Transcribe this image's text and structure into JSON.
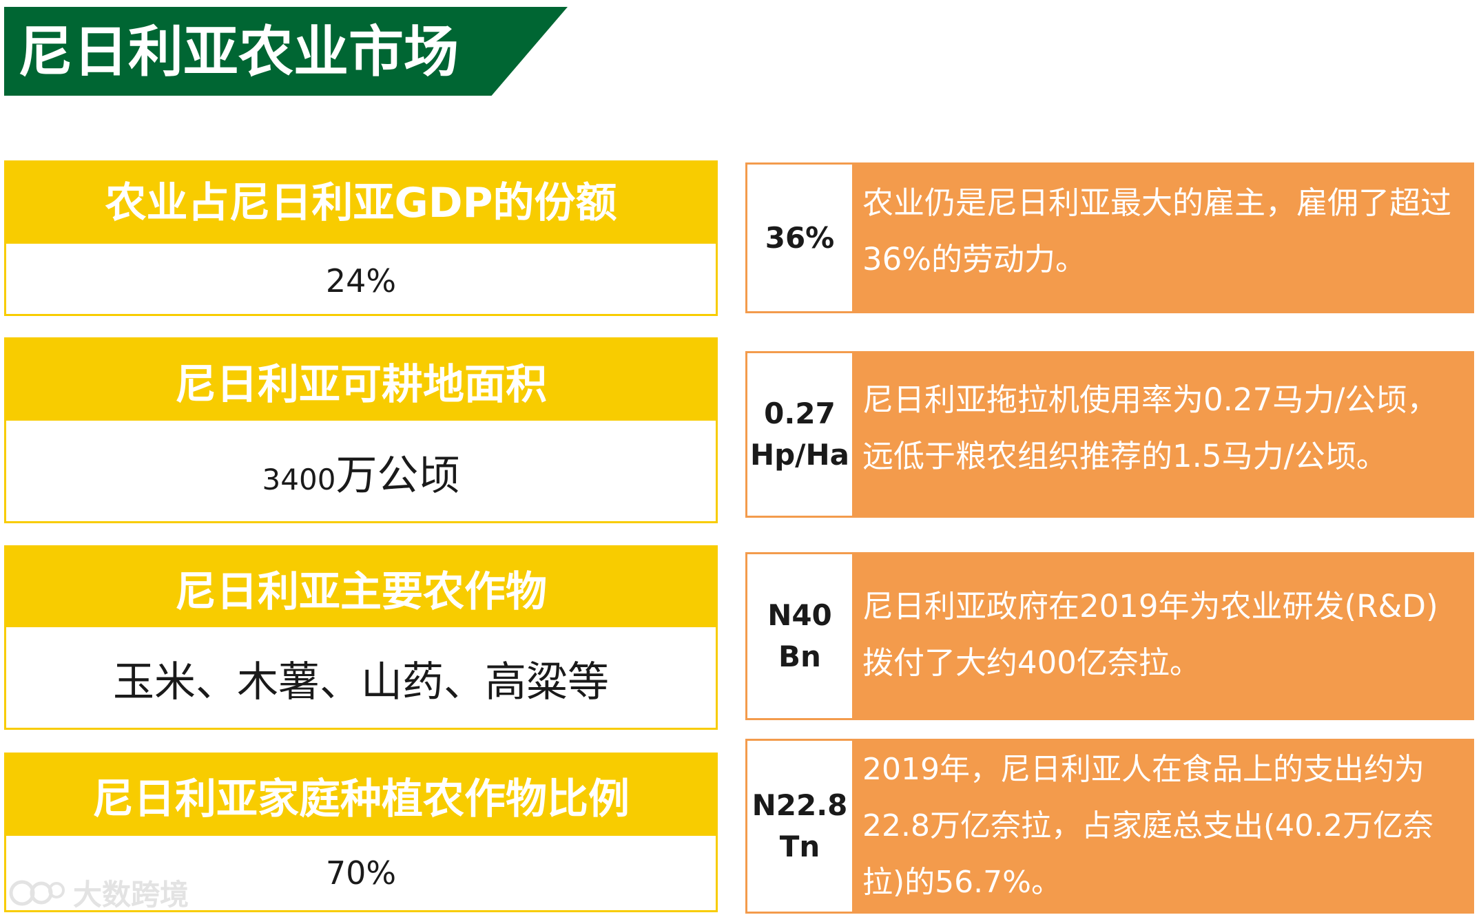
{
  "header": {
    "title": "尼日利亚农业市场"
  },
  "stats": [
    {
      "label": "农业占尼日利亚GDP的份额",
      "value": "24%"
    },
    {
      "label": "尼日利亚可耕地面积",
      "value_number": "3400",
      "value_unit": "万公顷"
    },
    {
      "label": "尼日利亚主要农作物",
      "value": "玉米、木薯、山药、高粱等"
    },
    {
      "label": "尼日利亚家庭种植农作物比例",
      "value": "70%"
    }
  ],
  "facts": [
    {
      "key_line1": "36%",
      "key_line2": "",
      "text": "农业仍是尼日利亚最大的雇主，雇佣了超过36%的劳动力。"
    },
    {
      "key_line1": "0.27",
      "key_line2": "Hp/Ha",
      "text": "尼日利亚拖拉机使用率为0.27马力/公顷，远低于粮农组织推荐的1.5马力/公顷。"
    },
    {
      "key_line1": "N40",
      "key_line2": "Bn",
      "text": "尼日利亚政府在2019年为农业研发(R&D)拨付了大约400亿奈拉。"
    },
    {
      "key_line1": "N22.8",
      "key_line2": "Tn",
      "text": "2019年，尼日利亚人在食品上的支出约为22.8万亿奈拉，占家庭总支出(40.2万亿奈拉)的56.7%。"
    }
  ],
  "watermark": {
    "text": "大数跨境"
  },
  "colors": {
    "banner": "#006633",
    "yellow": "#f8cc00",
    "orange": "#f39b4c",
    "text_dark": "#1a1a1a"
  }
}
